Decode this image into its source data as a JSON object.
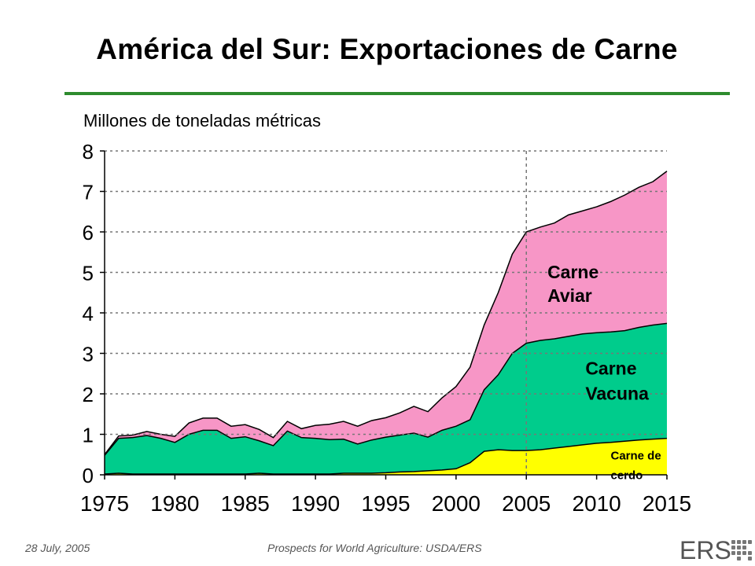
{
  "title": "América del Sur:  Exportaciones de Carne",
  "footer": {
    "date": "28 July, 2005",
    "source": "Prospects for World Agriculture:  USDA/ERS",
    "logo": "ERS"
  },
  "chart_data": {
    "type": "area",
    "stacked": true,
    "title": "América del Sur:  Exportaciones de Carne",
    "ylabel": "Millones de toneladas métricas",
    "xlabel": "",
    "xlim": [
      1975,
      2015
    ],
    "ylim": [
      0,
      8
    ],
    "x_ticks": [
      1975,
      1980,
      1985,
      1990,
      1995,
      2000,
      2005,
      2010,
      2015
    ],
    "y_ticks": [
      0,
      1,
      2,
      3,
      4,
      5,
      6,
      7,
      8
    ],
    "grid": "horizontal dotted",
    "reference_line_x": 2005,
    "x": [
      1975,
      1976,
      1977,
      1978,
      1979,
      1980,
      1981,
      1982,
      1983,
      1984,
      1985,
      1986,
      1987,
      1988,
      1989,
      1990,
      1991,
      1992,
      1993,
      1994,
      1995,
      1996,
      1997,
      1998,
      1999,
      2000,
      2001,
      2002,
      2003,
      2004,
      2005,
      2006,
      2007,
      2008,
      2009,
      2010,
      2011,
      2012,
      2013,
      2014,
      2015
    ],
    "series": [
      {
        "name": "Carne de cerdo",
        "color": "#ffff00",
        "values": [
          0.02,
          0.04,
          0.02,
          0.02,
          0.02,
          0.02,
          0.02,
          0.02,
          0.02,
          0.02,
          0.02,
          0.04,
          0.02,
          0.02,
          0.02,
          0.02,
          0.02,
          0.04,
          0.04,
          0.04,
          0.05,
          0.07,
          0.08,
          0.1,
          0.12,
          0.15,
          0.3,
          0.58,
          0.62,
          0.6,
          0.6,
          0.62,
          0.66,
          0.7,
          0.74,
          0.78,
          0.8,
          0.83,
          0.86,
          0.88,
          0.9
        ]
      },
      {
        "name": "Carne Vacuna",
        "color": "#00cc8c",
        "values": [
          0.46,
          0.86,
          0.9,
          0.95,
          0.88,
          0.78,
          0.98,
          1.08,
          1.08,
          0.88,
          0.92,
          0.8,
          0.7,
          1.06,
          0.9,
          0.88,
          0.85,
          0.84,
          0.72,
          0.82,
          0.88,
          0.91,
          0.95,
          0.83,
          0.98,
          1.05,
          1.06,
          1.52,
          1.85,
          2.4,
          2.65,
          2.7,
          2.7,
          2.72,
          2.74,
          2.73,
          2.73,
          2.73,
          2.78,
          2.82,
          2.84
        ]
      },
      {
        "name": "Carne Aviar",
        "color": "#f796c6",
        "values": [
          0.02,
          0.06,
          0.06,
          0.1,
          0.1,
          0.15,
          0.28,
          0.3,
          0.3,
          0.3,
          0.3,
          0.28,
          0.2,
          0.24,
          0.22,
          0.32,
          0.38,
          0.44,
          0.44,
          0.48,
          0.48,
          0.55,
          0.66,
          0.63,
          0.8,
          0.98,
          1.3,
          1.6,
          2.03,
          2.45,
          2.75,
          2.8,
          2.86,
          3.0,
          3.04,
          3.11,
          3.22,
          3.35,
          3.46,
          3.54,
          3.76
        ]
      }
    ],
    "annotations": [
      {
        "text": "Carne Aviar",
        "series": "Carne Aviar"
      },
      {
        "text": "Carne Vacuna",
        "series": "Carne Vacuna"
      },
      {
        "text": "Carne de cerdo",
        "series": "Carne de cerdo"
      }
    ]
  }
}
